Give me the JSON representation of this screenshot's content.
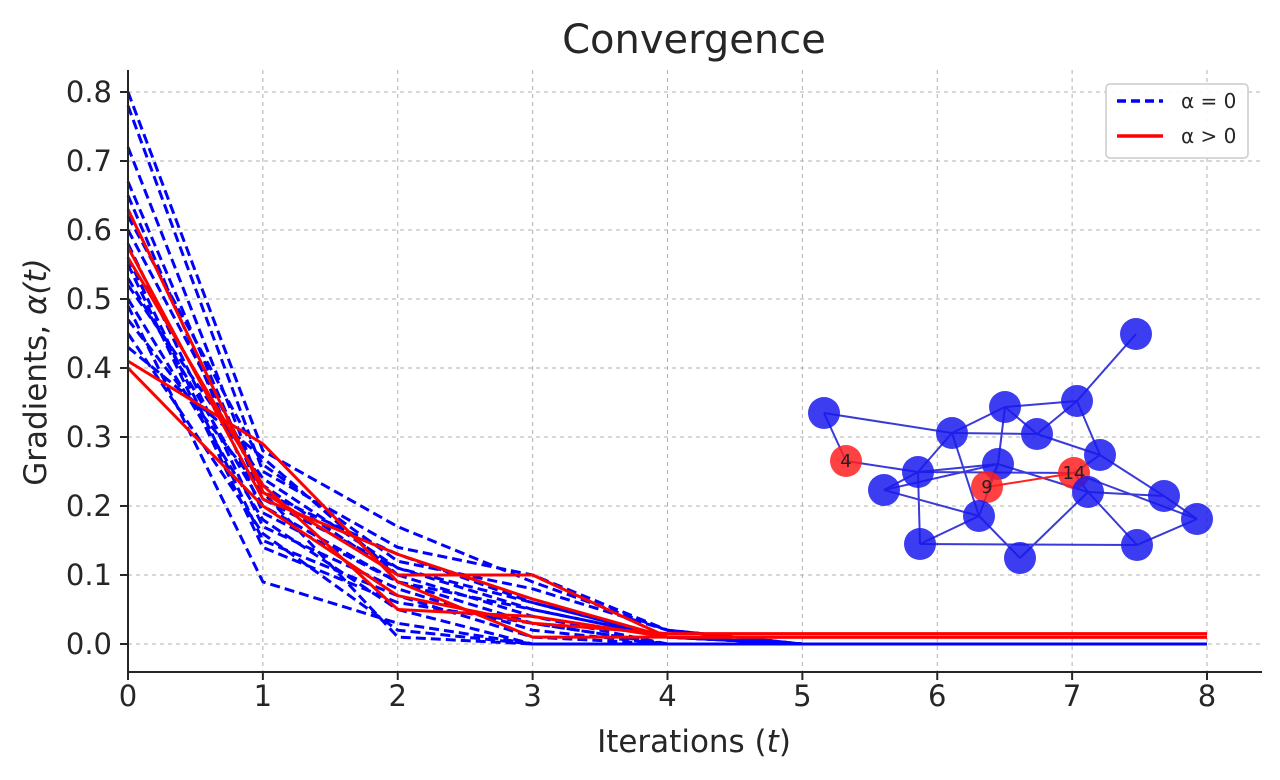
{
  "chart_data": {
    "type": "line",
    "title": "Convergence",
    "xlabel_prefix": "Iterations (",
    "xlabel_var": "t",
    "xlabel_suffix": ")",
    "ylabel_prefix": "Gradients, ",
    "ylabel_math": "α(t)",
    "xlim": [
      0,
      8
    ],
    "ylim": [
      -0.04,
      0.83
    ],
    "xticks": [
      0,
      1,
      2,
      3,
      4,
      5,
      6,
      7,
      8
    ],
    "yticks": [
      0.0,
      0.1,
      0.2,
      0.3,
      0.4,
      0.5,
      0.6,
      0.7,
      0.8
    ],
    "ytick_labels": [
      "0.0",
      "0.1",
      "0.2",
      "0.3",
      "0.4",
      "0.5",
      "0.6",
      "0.7",
      "0.8"
    ],
    "xtick_labels": [
      "0",
      "1",
      "2",
      "3",
      "4",
      "5",
      "6",
      "7",
      "8"
    ],
    "grid": true,
    "legend": {
      "placement": "top-right",
      "entries": [
        {
          "label": "α = 0",
          "color": "#0000ff",
          "style": "dashed"
        },
        {
          "label": "α > 0",
          "color": "#ff0000",
          "style": "solid"
        }
      ]
    },
    "x": [
      0,
      1,
      2,
      3,
      4,
      5,
      6,
      7,
      8
    ],
    "series_alpha_zero": [
      {
        "name": "α = 0",
        "values": [
          0.8,
          0.28,
          0.17,
          0.09,
          0.02,
          0.0,
          0.0,
          0.0,
          0.0
        ]
      },
      {
        "name": "α = 0",
        "values": [
          0.78,
          0.25,
          0.14,
          0.1,
          0.01,
          0.0,
          0.0,
          0.0,
          0.0
        ]
      },
      {
        "name": "α = 0",
        "values": [
          0.72,
          0.22,
          0.13,
          0.06,
          0.01,
          0.0,
          0.0,
          0.0,
          0.0
        ]
      },
      {
        "name": "α = 0",
        "values": [
          0.67,
          0.21,
          0.11,
          0.05,
          0.01,
          0.0,
          0.0,
          0.0,
          0.0
        ]
      },
      {
        "name": "α = 0",
        "values": [
          0.65,
          0.19,
          0.09,
          0.03,
          0.0,
          0.0,
          0.0,
          0.0,
          0.0
        ]
      },
      {
        "name": "α = 0",
        "values": [
          0.62,
          0.26,
          0.12,
          0.08,
          0.02,
          0.0,
          0.0,
          0.0,
          0.0
        ]
      },
      {
        "name": "α = 0",
        "values": [
          0.6,
          0.23,
          0.1,
          0.04,
          0.0,
          0.0,
          0.0,
          0.0,
          0.0
        ]
      },
      {
        "name": "α = 0",
        "values": [
          0.58,
          0.17,
          0.08,
          0.02,
          0.0,
          0.0,
          0.0,
          0.0,
          0.0
        ]
      },
      {
        "name": "α = 0",
        "values": [
          0.56,
          0.15,
          0.07,
          0.01,
          0.0,
          0.0,
          0.0,
          0.0,
          0.0
        ]
      },
      {
        "name": "α = 0",
        "values": [
          0.55,
          0.14,
          0.06,
          0.03,
          0.0,
          0.0,
          0.0,
          0.0,
          0.0
        ]
      },
      {
        "name": "α = 0",
        "values": [
          0.53,
          0.2,
          0.09,
          0.05,
          0.01,
          0.0,
          0.0,
          0.0,
          0.0
        ]
      },
      {
        "name": "α = 0",
        "values": [
          0.52,
          0.24,
          0.11,
          0.06,
          0.01,
          0.0,
          0.0,
          0.0,
          0.0
        ]
      },
      {
        "name": "α = 0",
        "values": [
          0.5,
          0.18,
          0.05,
          0.0,
          0.0,
          0.0,
          0.0,
          0.0,
          0.0
        ]
      },
      {
        "name": "α = 0",
        "values": [
          0.49,
          0.09,
          0.03,
          0.0,
          0.0,
          0.0,
          0.0,
          0.0,
          0.0
        ]
      },
      {
        "name": "α = 0",
        "values": [
          0.47,
          0.22,
          0.01,
          0.0,
          0.0,
          0.0,
          0.0,
          0.0,
          0.0
        ]
      },
      {
        "name": "α = 0",
        "values": [
          0.45,
          0.16,
          0.02,
          0.0,
          0.0,
          0.0,
          0.0,
          0.0,
          0.0
        ]
      },
      {
        "name": "α = 0",
        "values": [
          0.43,
          0.27,
          0.1,
          0.1,
          0.02,
          0.0,
          0.0,
          0.0,
          0.0
        ]
      }
    ],
    "series_alpha_positive": [
      {
        "name": "α > 0",
        "values": [
          0.63,
          0.22,
          0.1,
          0.1,
          0.01,
          0.01,
          0.01,
          0.01,
          0.01
        ]
      },
      {
        "name": "α > 0",
        "values": [
          0.575,
          0.21,
          0.13,
          0.065,
          0.01,
          0.01,
          0.01,
          0.01,
          0.01
        ]
      },
      {
        "name": "α > 0",
        "values": [
          0.56,
          0.23,
          0.05,
          0.04,
          0.01,
          0.01,
          0.01,
          0.01,
          0.01
        ]
      },
      {
        "name": "α > 0",
        "values": [
          0.41,
          0.29,
          0.09,
          0.01,
          0.01,
          0.01,
          0.01,
          0.01,
          0.01
        ]
      },
      {
        "name": "α > 0",
        "values": [
          0.4,
          0.2,
          0.07,
          0.03,
          0.015,
          0.015,
          0.015,
          0.015,
          0.015
        ]
      }
    ]
  },
  "network_inset": {
    "node_color": "#1a1aee",
    "highlight_color": "#ff2020",
    "edge_color": "#3a3ad8",
    "highlighted_labels": [
      "4",
      "9",
      "14"
    ]
  }
}
